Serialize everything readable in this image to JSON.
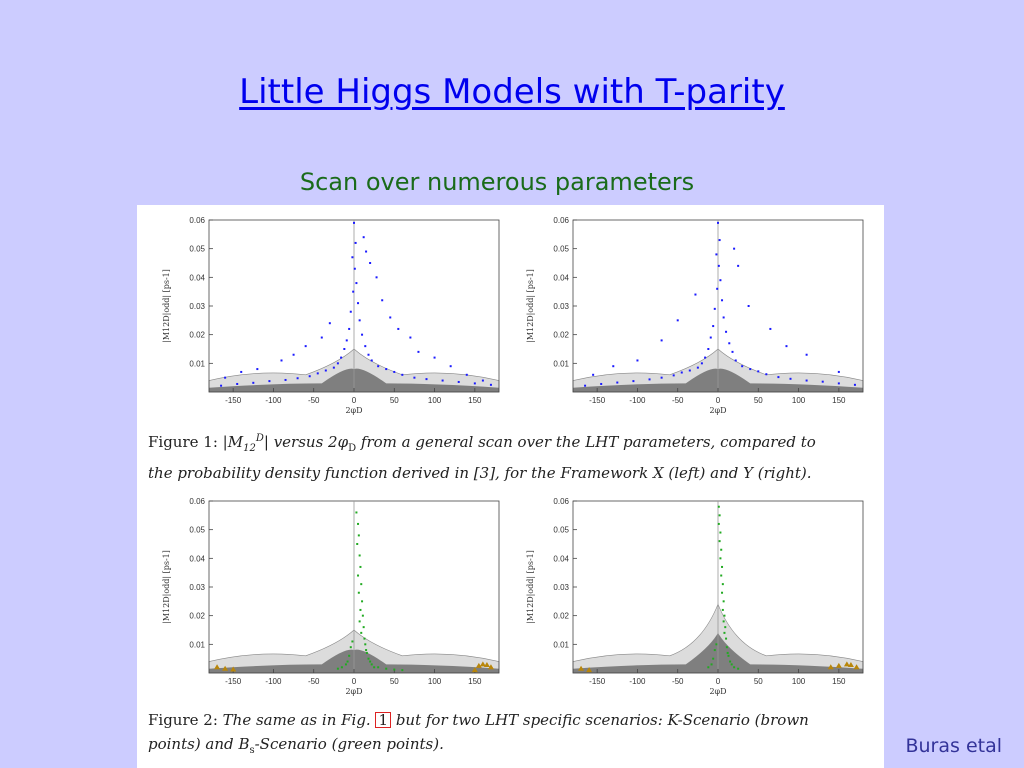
{
  "slide": {
    "title": "Little Higgs Models with T-parity",
    "subtitle": "Scan over numerous parameters",
    "credit": "Buras etal"
  },
  "colors": {
    "background": "#ccccff",
    "title": "#0000ee",
    "subtitle": "#1a6b1a",
    "blue_points": "#1a1aff",
    "green_points": "#22aa22",
    "brown_points": "#b8860b",
    "light_region": "#dcdcdc",
    "dark_region": "#6e6e6e"
  },
  "captions": {
    "fig1": {
      "label": "Figure 1:",
      "lead_text": "versus 2",
      "symbol_text": "φ",
      "sub_text": "D",
      "mid_text": "from a general scan over the LHT parameters, compared to",
      "line2": "the probability density function derived in [3], for the Framework X (left) and Y (right)."
    },
    "fig2": {
      "label": "Figure 2:",
      "lead_text": "The same as in Fig.",
      "ref": "1",
      "mid_text": "but for two LHT specific scenarios:",
      "k_symbol": "K",
      "k_text": "-Scenario (brown",
      "line2_a": "points) and",
      "bs_symbol": "B",
      "bs_sub": "s",
      "line2_b": "-Scenario (green points)."
    }
  },
  "chart_data": [
    {
      "type": "scatter",
      "panel": "Figure 1 left (Framework X)",
      "xlabel": "2φD",
      "ylabel": "|M12D|odd| [ps-1]",
      "xlim": [
        -180,
        180
      ],
      "ylim": [
        0,
        0.06
      ],
      "x_ticks": [
        -150,
        -100,
        -50,
        0,
        50,
        100,
        150
      ],
      "y_ticks": [
        0.01,
        0.02,
        0.03,
        0.04,
        0.05,
        0.06
      ],
      "series": [
        {
          "color": "blue",
          "points": [
            [
              0,
              0.059
            ],
            [
              2,
              0.052
            ],
            [
              -2,
              0.047
            ],
            [
              1,
              0.043
            ],
            [
              3,
              0.038
            ],
            [
              -1,
              0.035
            ],
            [
              5,
              0.031
            ],
            [
              -4,
              0.028
            ],
            [
              7,
              0.025
            ],
            [
              -6,
              0.022
            ],
            [
              10,
              0.02
            ],
            [
              -9,
              0.018
            ],
            [
              14,
              0.016
            ],
            [
              -12,
              0.015
            ],
            [
              18,
              0.013
            ],
            [
              -16,
              0.012
            ],
            [
              22,
              0.011
            ],
            [
              -20,
              0.01
            ],
            [
              30,
              0.009
            ],
            [
              -25,
              0.0085
            ],
            [
              40,
              0.008
            ],
            [
              -35,
              0.0075
            ],
            [
              50,
              0.007
            ],
            [
              -45,
              0.0065
            ],
            [
              60,
              0.006
            ],
            [
              -55,
              0.0055
            ],
            [
              75,
              0.005
            ],
            [
              -70,
              0.0048
            ],
            [
              90,
              0.0045
            ],
            [
              -85,
              0.0042
            ],
            [
              110,
              0.004
            ],
            [
              -105,
              0.0038
            ],
            [
              130,
              0.0035
            ],
            [
              -125,
              0.0032
            ],
            [
              150,
              0.003
            ],
            [
              -145,
              0.0028
            ],
            [
              170,
              0.0025
            ],
            [
              -165,
              0.0022
            ],
            [
              12,
              0.054
            ],
            [
              15,
              0.049
            ],
            [
              20,
              0.045
            ],
            [
              28,
              0.04
            ],
            [
              35,
              0.032
            ],
            [
              45,
              0.026
            ],
            [
              55,
              0.022
            ],
            [
              70,
              0.019
            ],
            [
              80,
              0.014
            ],
            [
              -30,
              0.024
            ],
            [
              -40,
              0.019
            ],
            [
              -60,
              0.016
            ],
            [
              -75,
              0.013
            ],
            [
              -90,
              0.011
            ],
            [
              100,
              0.012
            ],
            [
              120,
              0.009
            ],
            [
              -120,
              0.008
            ],
            [
              140,
              0.006
            ],
            [
              -140,
              0.007
            ],
            [
              160,
              0.004
            ],
            [
              -160,
              0.005
            ]
          ]
        }
      ]
    },
    {
      "type": "scatter",
      "panel": "Figure 1 right (Framework Y)",
      "xlabel": "2φD",
      "ylabel": "|M12D|odd| [ps-1]",
      "xlim": [
        -180,
        180
      ],
      "ylim": [
        0,
        0.06
      ],
      "x_ticks": [
        -150,
        -100,
        -50,
        0,
        50,
        100,
        150
      ],
      "y_ticks": [
        0.01,
        0.02,
        0.03,
        0.04,
        0.05,
        0.06
      ],
      "series": [
        {
          "color": "blue",
          "points": [
            [
              0,
              0.059
            ],
            [
              2,
              0.053
            ],
            [
              -2,
              0.048
            ],
            [
              1,
              0.044
            ],
            [
              3,
              0.039
            ],
            [
              -1,
              0.036
            ],
            [
              5,
              0.032
            ],
            [
              -4,
              0.029
            ],
            [
              7,
              0.026
            ],
            [
              -6,
              0.023
            ],
            [
              10,
              0.021
            ],
            [
              -9,
              0.019
            ],
            [
              14,
              0.017
            ],
            [
              -12,
              0.015
            ],
            [
              18,
              0.014
            ],
            [
              -16,
              0.012
            ],
            [
              22,
              0.011
            ],
            [
              -20,
              0.01
            ],
            [
              30,
              0.009
            ],
            [
              -25,
              0.0085
            ],
            [
              40,
              0.008
            ],
            [
              -35,
              0.0075
            ],
            [
              50,
              0.0072
            ],
            [
              -45,
              0.0068
            ],
            [
              60,
              0.0062
            ],
            [
              -55,
              0.0058
            ],
            [
              75,
              0.0052
            ],
            [
              -70,
              0.005
            ],
            [
              90,
              0.0046
            ],
            [
              -85,
              0.0044
            ],
            [
              110,
              0.004
            ],
            [
              -105,
              0.0038
            ],
            [
              130,
              0.0036
            ],
            [
              -125,
              0.0033
            ],
            [
              150,
              0.003
            ],
            [
              -145,
              0.0028
            ],
            [
              170,
              0.0025
            ],
            [
              -165,
              0.0022
            ],
            [
              20,
              0.05
            ],
            [
              25,
              0.044
            ],
            [
              -28,
              0.034
            ],
            [
              38,
              0.03
            ],
            [
              -50,
              0.025
            ],
            [
              65,
              0.022
            ],
            [
              -70,
              0.018
            ],
            [
              85,
              0.016
            ],
            [
              -100,
              0.011
            ],
            [
              110,
              0.013
            ],
            [
              -130,
              0.009
            ],
            [
              150,
              0.007
            ],
            [
              -155,
              0.006
            ]
          ]
        }
      ]
    },
    {
      "type": "scatter",
      "panel": "Figure 2 left (Framework X)",
      "xlabel": "2φD",
      "ylabel": "|M12D|odd| [ps-1]",
      "xlim": [
        -180,
        180
      ],
      "ylim": [
        0,
        0.06
      ],
      "x_ticks": [
        -150,
        -100,
        -50,
        0,
        50,
        100,
        150
      ],
      "y_ticks": [
        0.01,
        0.02,
        0.03,
        0.04,
        0.05,
        0.06
      ],
      "series": [
        {
          "color": "green",
          "points": [
            [
              3,
              0.056
            ],
            [
              5,
              0.052
            ],
            [
              6,
              0.048
            ],
            [
              4,
              0.045
            ],
            [
              7,
              0.041
            ],
            [
              8,
              0.037
            ],
            [
              5,
              0.034
            ],
            [
              9,
              0.031
            ],
            [
              6,
              0.028
            ],
            [
              10,
              0.025
            ],
            [
              8,
              0.022
            ],
            [
              11,
              0.02
            ],
            [
              7,
              0.018
            ],
            [
              12,
              0.016
            ],
            [
              9,
              0.014
            ],
            [
              13,
              0.012
            ],
            [
              -2,
              0.011
            ],
            [
              -4,
              0.009
            ],
            [
              14,
              0.01
            ],
            [
              15,
              0.008
            ],
            [
              16,
              0.007
            ],
            [
              -6,
              0.006
            ],
            [
              18,
              0.005
            ],
            [
              20,
              0.004
            ],
            [
              -8,
              0.004
            ],
            [
              22,
              0.003
            ],
            [
              25,
              0.002
            ],
            [
              30,
              0.002
            ],
            [
              40,
              0.0015
            ],
            [
              50,
              0.0012
            ],
            [
              60,
              0.001
            ],
            [
              -10,
              0.003
            ],
            [
              -15,
              0.002
            ],
            [
              -20,
              0.0015
            ]
          ]
        },
        {
          "color": "brown",
          "points": [
            [
              -170,
              0.002
            ],
            [
              -160,
              0.0015
            ],
            [
              -150,
              0.0012
            ],
            [
              150,
              0.001
            ],
            [
              155,
              0.0025
            ],
            [
              160,
              0.003
            ],
            [
              165,
              0.0028
            ],
            [
              170,
              0.002
            ]
          ]
        }
      ]
    },
    {
      "type": "scatter",
      "panel": "Figure 2 right (Framework Y)",
      "xlabel": "2φD",
      "ylabel": "|M12D|odd| [ps-1]",
      "xlim": [
        -180,
        180
      ],
      "ylim": [
        0,
        0.06
      ],
      "x_ticks": [
        -150,
        -100,
        -50,
        0,
        50,
        100,
        150
      ],
      "y_ticks": [
        0.01,
        0.02,
        0.03,
        0.04,
        0.05,
        0.06
      ],
      "series": [
        {
          "color": "green",
          "points": [
            [
              1,
              0.058
            ],
            [
              2,
              0.055
            ],
            [
              1,
              0.052
            ],
            [
              3,
              0.049
            ],
            [
              2,
              0.046
            ],
            [
              4,
              0.043
            ],
            [
              3,
              0.04
            ],
            [
              5,
              0.037
            ],
            [
              4,
              0.034
            ],
            [
              6,
              0.031
            ],
            [
              5,
              0.028
            ],
            [
              7,
              0.025
            ],
            [
              6,
              0.022
            ],
            [
              8,
              0.02
            ],
            [
              7,
              0.018
            ],
            [
              9,
              0.016
            ],
            [
              8,
              0.014
            ],
            [
              10,
              0.012
            ],
            [
              -2,
              0.01
            ],
            [
              11,
              0.009
            ],
            [
              -4,
              0.008
            ],
            [
              12,
              0.007
            ],
            [
              13,
              0.006
            ],
            [
              -6,
              0.005
            ],
            [
              15,
              0.004
            ],
            [
              17,
              0.003
            ],
            [
              -8,
              0.003
            ],
            [
              20,
              0.002
            ],
            [
              25,
              0.0015
            ],
            [
              -12,
              0.002
            ]
          ]
        },
        {
          "color": "brown",
          "points": [
            [
              -170,
              0.0015
            ],
            [
              -160,
              0.001
            ],
            [
              140,
              0.002
            ],
            [
              150,
              0.0025
            ],
            [
              160,
              0.003
            ],
            [
              165,
              0.0028
            ],
            [
              172,
              0.002
            ]
          ]
        }
      ]
    }
  ]
}
